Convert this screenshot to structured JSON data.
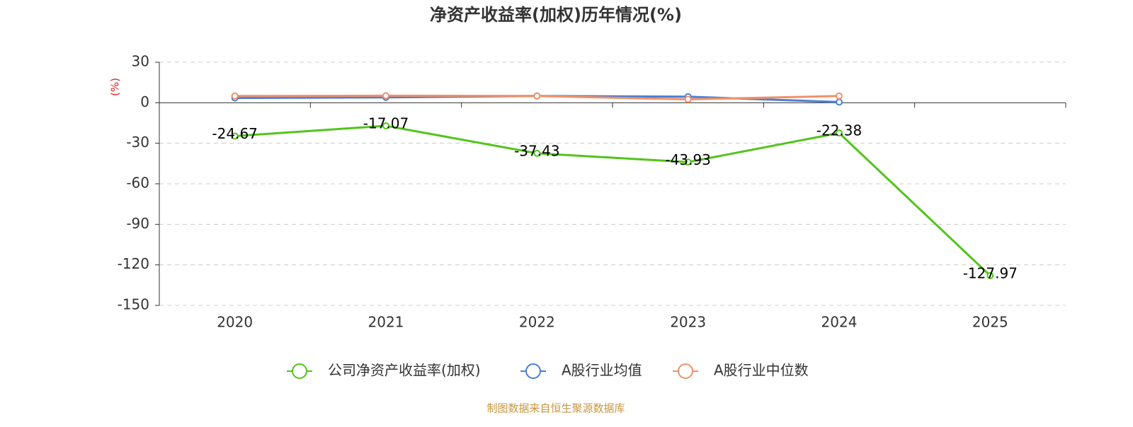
{
  "chart_data": {
    "type": "line",
    "title": "净资产收益率(加权)历年情况(%)",
    "y_label": "(%)",
    "source": "制图数据来自恒生聚源数据库",
    "categories": [
      "2020",
      "2021",
      "2022",
      "2023",
      "2024",
      "2025"
    ],
    "series": [
      {
        "name": "公司净资产收益率(加权)",
        "color": "#52c41a",
        "values": [
          -24.67,
          -17.07,
          -37.43,
          -43.93,
          -22.38,
          -127.97
        ],
        "show_labels": true
      },
      {
        "name": "A股行业均值",
        "color": "#4a7fd6",
        "values": [
          3.5,
          4,
          5,
          4.5,
          0.5,
          null
        ]
      },
      {
        "name": "A股行业中位数",
        "color": "#f0916a",
        "values": [
          5,
          5.2,
          5,
          2.5,
          5,
          null
        ]
      }
    ],
    "ylim": [
      -150,
      30
    ],
    "yticks": [
      30,
      0,
      -30,
      -60,
      -90,
      -120,
      -150
    ],
    "grid": true
  }
}
